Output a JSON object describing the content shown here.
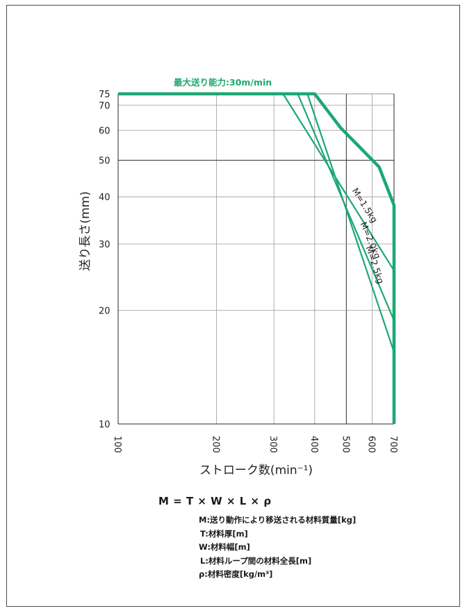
{
  "chart_data": {
    "type": "line",
    "xlabel": "ストローク数(min⁻¹)",
    "ylabel": "送り長さ(mm)",
    "x_scale": "log",
    "y_scale": "log",
    "xlim": [
      100,
      700
    ],
    "ylim": [
      10,
      75
    ],
    "x_ticks": [
      100,
      200,
      300,
      400,
      500,
      600,
      700
    ],
    "y_ticks": [
      10,
      20,
      30,
      40,
      50,
      60,
      70,
      75
    ],
    "grid": true,
    "max_capacity_label": "最大送り能力:30m/min",
    "series": [
      {
        "name": "",
        "role": "envelope",
        "x": [
          100,
          400,
          480,
          630,
          700,
          700
        ],
        "y": [
          75,
          75,
          61,
          48,
          38,
          10
        ]
      },
      {
        "name": "M=1.5kg",
        "x": [
          320,
          700
        ],
        "y": [
          75,
          25.5
        ]
      },
      {
        "name": "M=2.0kg",
        "x": [
          355,
          700
        ],
        "y": [
          75,
          18.8
        ]
      },
      {
        "name": "M=2.5kg",
        "x": [
          380,
          700
        ],
        "y": [
          75,
          15.5
        ]
      }
    ],
    "colors": {
      "line": "#1aa872",
      "axis": "#2a2a2a",
      "grid": "#9a9a9a"
    }
  },
  "formula": {
    "equation": "M = T × W × L × ρ",
    "definitions": [
      "M:送り動作により移送される材料質量[kg]",
      "T:材料厚[m]",
      "W:材料幅[m]",
      "L:材料ループ間の材料全長[m]",
      "ρ:材料密度[kg/m³]"
    ]
  }
}
